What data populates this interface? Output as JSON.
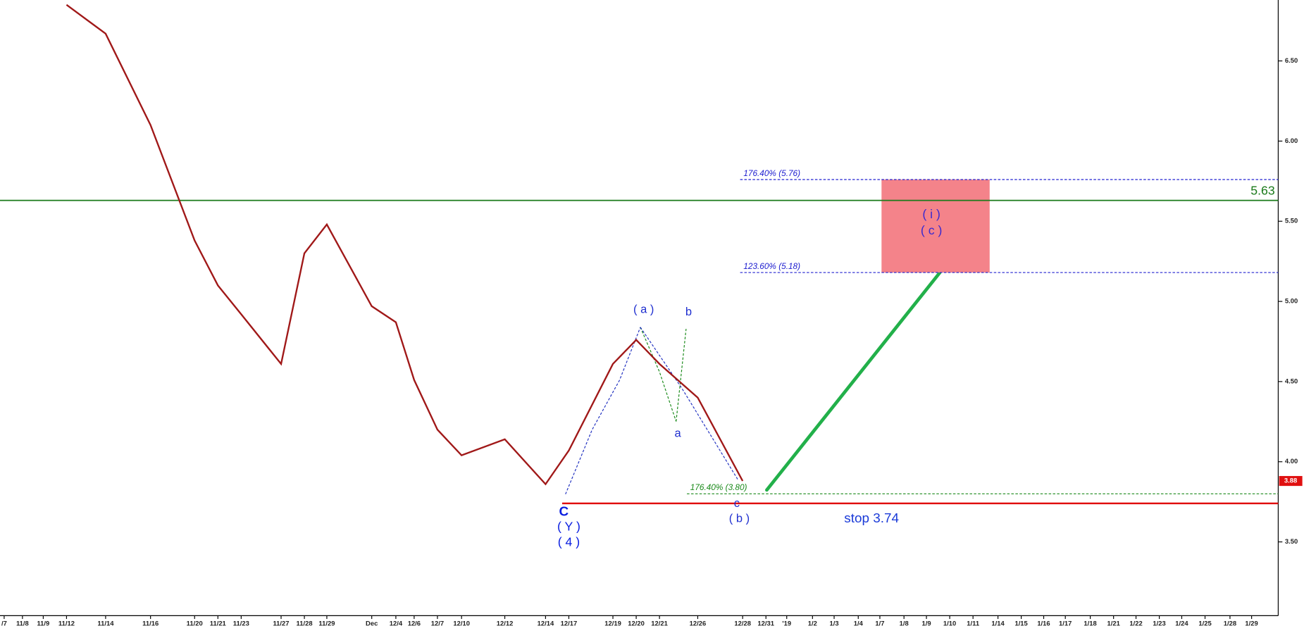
{
  "chart_data": {
    "type": "line",
    "categories": [
      "/7",
      "11/8",
      "11/9",
      "11/12",
      "11/14",
      "11/16",
      "11/20",
      "11/21",
      "11/23",
      "11/27",
      "11/28",
      "11/29",
      "Dec",
      "12/4",
      "12/6",
      "12/7",
      "12/10",
      "12/12",
      "12/14",
      "12/17",
      "12/19",
      "12/20",
      "12/21",
      "12/26",
      "12/28",
      "12/31",
      "'19",
      "1/2",
      "1/3",
      "1/4",
      "1/7",
      "1/8",
      "1/9",
      "1/10",
      "1/11",
      "1/14",
      "1/15",
      "1/16",
      "1/17",
      "1/18",
      "1/21",
      "1/22",
      "1/23",
      "1/24",
      "1/25",
      "1/28",
      "1/29"
    ],
    "values": [
      null,
      null,
      null,
      6.85,
      6.67,
      6.1,
      5.38,
      5.1,
      4.92,
      4.61,
      5.3,
      5.48,
      4.97,
      4.87,
      4.51,
      4.2,
      4.04,
      4.14,
      3.86,
      4.07,
      4.61,
      4.76,
      4.61,
      4.4,
      3.88,
      null,
      null,
      null,
      null,
      null,
      null,
      null,
      null,
      null,
      null,
      null,
      null,
      null,
      null,
      null,
      null,
      null,
      null,
      null,
      null,
      null,
      null
    ],
    "color": "#a01818",
    "ylim": [
      3.04,
      6.88
    ],
    "yticks": [
      {
        "value": 3.5,
        "label": "3.50"
      },
      {
        "value": 4.0,
        "label": "4.00"
      },
      {
        "value": 4.5,
        "label": "4.50"
      },
      {
        "value": 5.0,
        "label": "5.00"
      },
      {
        "value": 5.5,
        "label": "5.50"
      },
      {
        "value": 6.0,
        "label": "6.00"
      },
      {
        "value": 6.5,
        "label": "6.50"
      }
    ],
    "last_price": {
      "value": 3.88,
      "label": "3.88",
      "color": "#e01010"
    },
    "levels": [
      {
        "value": 5.63,
        "label": "5.63",
        "color": "#1a7a1a"
      },
      {
        "value": 3.74,
        "label": "stop 3.74",
        "color": "#e00000"
      }
    ],
    "fib_levels": [
      {
        "value": 5.76,
        "label": "176.40% (5.76)",
        "color": "#2020d0"
      },
      {
        "value": 5.18,
        "label": "123.60% (5.18)",
        "color": "#2020d0"
      },
      {
        "value": 3.8,
        "label": "176.40% (3.80)",
        "color": "#1a8a1a"
      }
    ],
    "target_zone_color": "#f4838a",
    "annotations": [
      "C",
      "( Y )",
      "( 4 )",
      "( a )",
      "b",
      "a",
      "c",
      "( b )",
      "( i )",
      "( c )"
    ]
  }
}
